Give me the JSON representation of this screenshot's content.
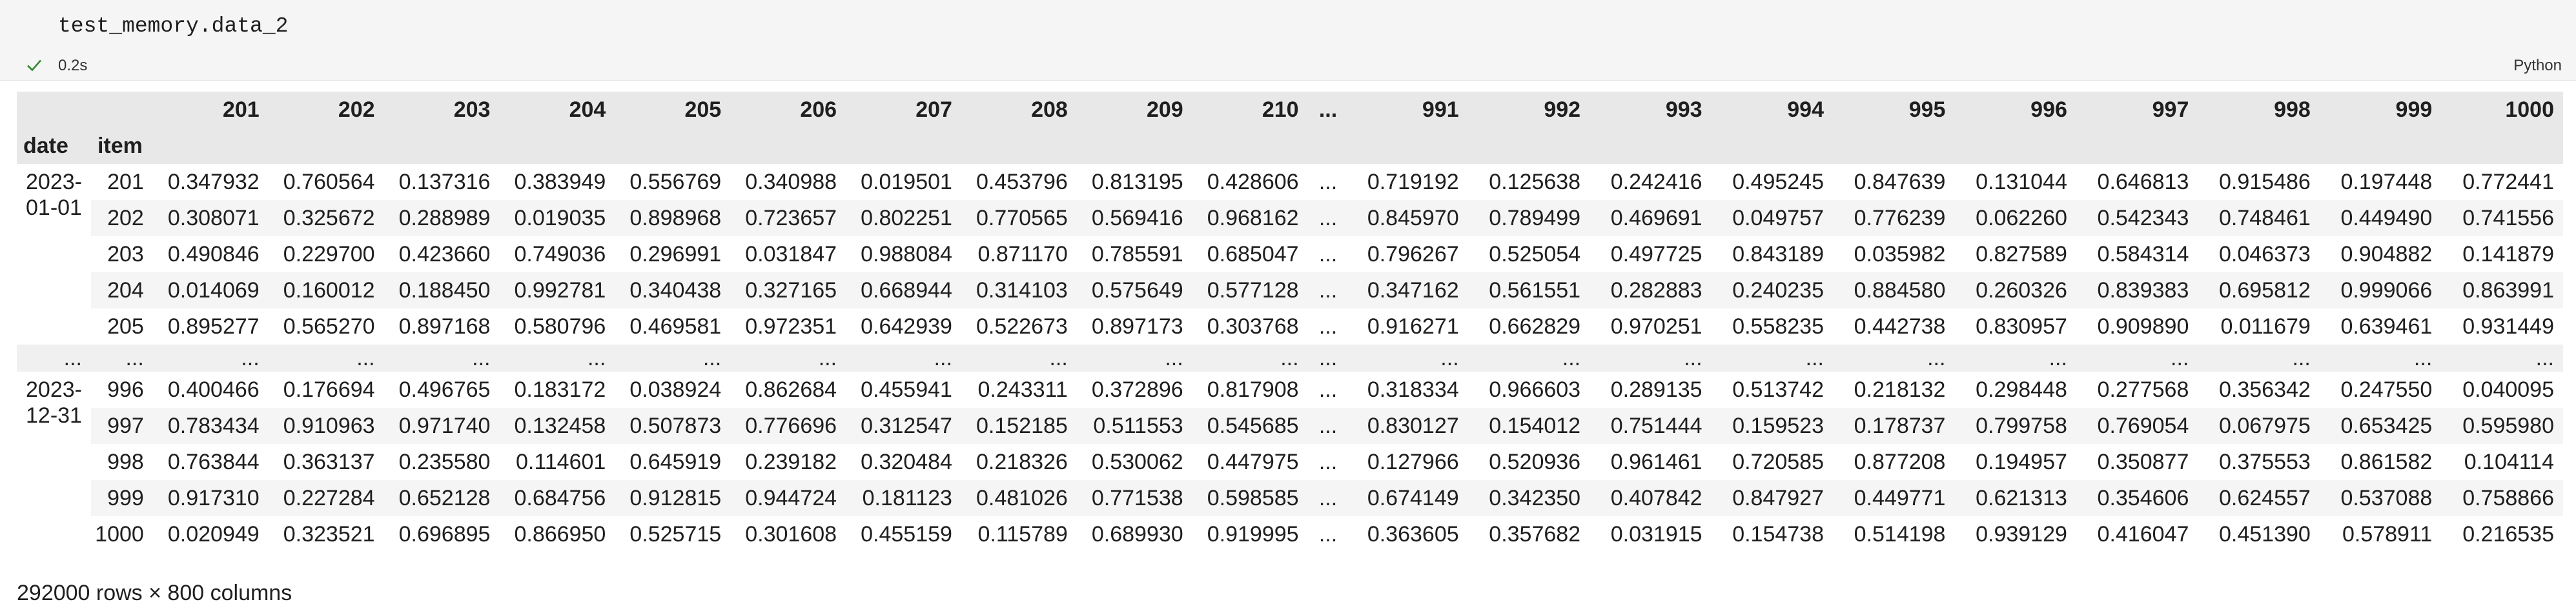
{
  "code": {
    "line": "test_memory.data_2",
    "exec_time": "0.2s",
    "language": "Python"
  },
  "df": {
    "index_names": [
      "date",
      "item"
    ],
    "columns": [
      "201",
      "202",
      "203",
      "204",
      "205",
      "206",
      "207",
      "208",
      "209",
      "210",
      "...",
      "991",
      "992",
      "993",
      "994",
      "995",
      "996",
      "997",
      "998",
      "999",
      "1000"
    ],
    "groups": [
      {
        "date": "2023-01-01",
        "rows": [
          {
            "item": "201",
            "values": [
              "0.347932",
              "0.760564",
              "0.137316",
              "0.383949",
              "0.556769",
              "0.340988",
              "0.019501",
              "0.453796",
              "0.813195",
              "0.428606",
              "...",
              "0.719192",
              "0.125638",
              "0.242416",
              "0.495245",
              "0.847639",
              "0.131044",
              "0.646813",
              "0.915486",
              "0.197448",
              "0.772441"
            ]
          },
          {
            "item": "202",
            "values": [
              "0.308071",
              "0.325672",
              "0.288989",
              "0.019035",
              "0.898968",
              "0.723657",
              "0.802251",
              "0.770565",
              "0.569416",
              "0.968162",
              "...",
              "0.845970",
              "0.789499",
              "0.469691",
              "0.049757",
              "0.776239",
              "0.062260",
              "0.542343",
              "0.748461",
              "0.449490",
              "0.741556"
            ]
          },
          {
            "item": "203",
            "values": [
              "0.490846",
              "0.229700",
              "0.423660",
              "0.749036",
              "0.296991",
              "0.031847",
              "0.988084",
              "0.871170",
              "0.785591",
              "0.685047",
              "...",
              "0.796267",
              "0.525054",
              "0.497725",
              "0.843189",
              "0.035982",
              "0.827589",
              "0.584314",
              "0.046373",
              "0.904882",
              "0.141879"
            ]
          },
          {
            "item": "204",
            "values": [
              "0.014069",
              "0.160012",
              "0.188450",
              "0.992781",
              "0.340438",
              "0.327165",
              "0.668944",
              "0.314103",
              "0.575649",
              "0.577128",
              "...",
              "0.347162",
              "0.561551",
              "0.282883",
              "0.240235",
              "0.884580",
              "0.260326",
              "0.839383",
              "0.695812",
              "0.999066",
              "0.863991"
            ]
          },
          {
            "item": "205",
            "values": [
              "0.895277",
              "0.565270",
              "0.897168",
              "0.580796",
              "0.469581",
              "0.972351",
              "0.642939",
              "0.522673",
              "0.897173",
              "0.303768",
              "...",
              "0.916271",
              "0.662829",
              "0.970251",
              "0.558235",
              "0.442738",
              "0.830957",
              "0.909890",
              "0.011679",
              "0.639461",
              "0.931449"
            ]
          }
        ]
      },
      {
        "date": "2023-12-31",
        "rows": [
          {
            "item": "996",
            "values": [
              "0.400466",
              "0.176694",
              "0.496765",
              "0.183172",
              "0.038924",
              "0.862684",
              "0.455941",
              "0.243311",
              "0.372896",
              "0.817908",
              "...",
              "0.318334",
              "0.966603",
              "0.289135",
              "0.513742",
              "0.218132",
              "0.298448",
              "0.277568",
              "0.356342",
              "0.247550",
              "0.040095"
            ]
          },
          {
            "item": "997",
            "values": [
              "0.783434",
              "0.910963",
              "0.971740",
              "0.132458",
              "0.507873",
              "0.776696",
              "0.312547",
              "0.152185",
              "0.511553",
              "0.545685",
              "...",
              "0.830127",
              "0.154012",
              "0.751444",
              "0.159523",
              "0.178737",
              "0.799758",
              "0.769054",
              "0.067975",
              "0.653425",
              "0.595980"
            ]
          },
          {
            "item": "998",
            "values": [
              "0.763844",
              "0.363137",
              "0.235580",
              "0.114601",
              "0.645919",
              "0.239182",
              "0.320484",
              "0.218326",
              "0.530062",
              "0.447975",
              "...",
              "0.127966",
              "0.520936",
              "0.961461",
              "0.720585",
              "0.877208",
              "0.194957",
              "0.350877",
              "0.375553",
              "0.861582",
              "0.104114"
            ]
          },
          {
            "item": "999",
            "values": [
              "0.917310",
              "0.227284",
              "0.652128",
              "0.684756",
              "0.912815",
              "0.944724",
              "0.181123",
              "0.481026",
              "0.771538",
              "0.598585",
              "...",
              "0.674149",
              "0.342350",
              "0.407842",
              "0.847927",
              "0.449771",
              "0.621313",
              "0.354606",
              "0.624557",
              "0.537088",
              "0.758866"
            ]
          },
          {
            "item": "1000",
            "values": [
              "0.020949",
              "0.323521",
              "0.696895",
              "0.866950",
              "0.525715",
              "0.301608",
              "0.455159",
              "0.115789",
              "0.689930",
              "0.919995",
              "...",
              "0.363605",
              "0.357682",
              "0.031915",
              "0.154738",
              "0.514198",
              "0.939129",
              "0.416047",
              "0.451390",
              "0.578911",
              "0.216535"
            ]
          }
        ]
      }
    ],
    "ellipsis": "...",
    "shape": "292000 rows × 800 columns"
  }
}
